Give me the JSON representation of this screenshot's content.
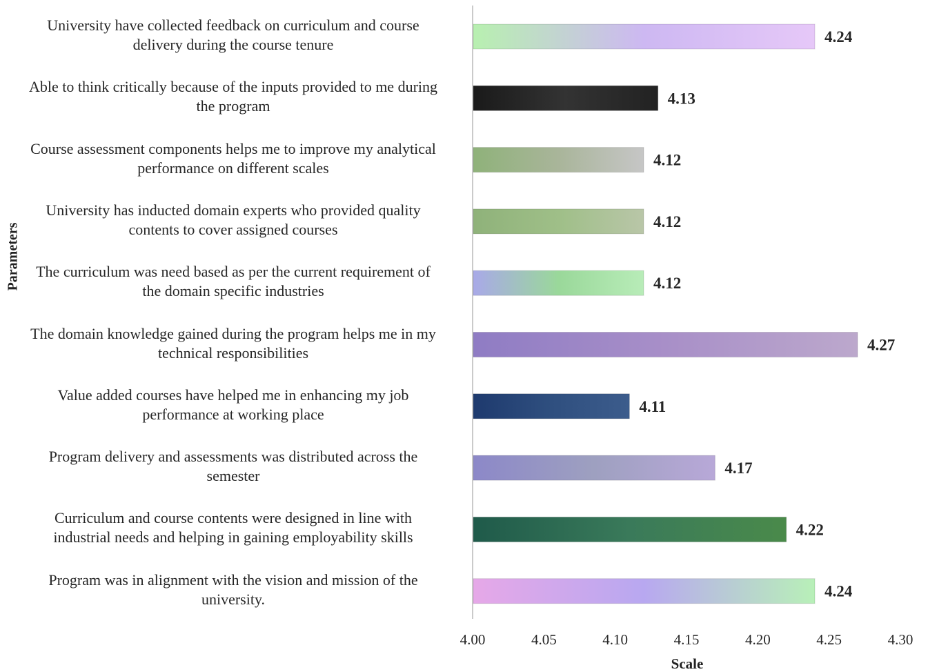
{
  "chart_data": {
    "type": "bar",
    "orientation": "horizontal",
    "categories": [
      "University have collected feedback on curriculum and course delivery during the course tenure",
      "Able to think critically because of the inputs provided to me during the program",
      "Course assessment components helps me to improve my analytical performance on different scales",
      "University has inducted domain experts who provided quality contents to cover assigned courses",
      "The curriculum was need based as per the current requirement of the domain specific industries",
      "The domain knowledge gained during the program helps me in my technical responsibilities",
      "Value added courses have helped me in enhancing my job performance at working place",
      "Program delivery and assessments was distributed across the semester",
      "Curriculum and course contents were designed in line with industrial needs and helping in gaining employability skills",
      "Program was in alignment with the vision and mission of the university."
    ],
    "category_lines": [
      [
        "University have collected feedback on curriculum and course",
        "delivery during the course tenure"
      ],
      [
        "Able to think critically because of the inputs provided to me during",
        "the program"
      ],
      [
        "Course assessment components helps me to improve my analytical",
        "performance on different scales"
      ],
      [
        "University has inducted domain experts who provided quality",
        "contents to cover assigned courses"
      ],
      [
        "The curriculum was need based as per the current requirement of",
        "the domain specific industries"
      ],
      [
        "The domain knowledge gained during the program helps me in my",
        "technical responsibilities"
      ],
      [
        "Value added courses have helped me in enhancing my job",
        "performance at working place"
      ],
      [
        "Program delivery and assessments was distributed across the",
        "semester"
      ],
      [
        "Curriculum and course contents were designed in line with",
        "industrial needs and helping in gaining employability skills"
      ],
      [
        "Program was in alignment with the vision and mission of the",
        "university."
      ]
    ],
    "values": [
      4.24,
      4.13,
      4.12,
      4.12,
      4.12,
      4.27,
      4.11,
      4.17,
      4.22,
      4.24
    ],
    "value_labels": [
      "4.24",
      "4.13",
      "4.12",
      "4.12",
      "4.12",
      "4.27",
      "4.11",
      "4.17",
      "4.22",
      "4.24"
    ],
    "bar_colors": [
      [
        "#b8f0b0",
        "#cdb8f2",
        "#e6c8f8"
      ],
      [
        "#1a1a1a",
        "#333333",
        "#222222"
      ],
      [
        "#8fb27a",
        "#a9b59a",
        "#c6c6c6"
      ],
      [
        "#8fb27a",
        "#9fbf88",
        "#b9c6a8"
      ],
      [
        "#a9a9e8",
        "#9ad89a",
        "#b8ecb8"
      ],
      [
        "#8f7cc4",
        "#a88fc8",
        "#bca8cc"
      ],
      [
        "#1e3a6e",
        "#2f4f7f",
        "#3c5c8c"
      ],
      [
        "#8c88c8",
        "#9ea0c0",
        "#b8a8d8"
      ],
      [
        "#1f5a4a",
        "#3a7a5a",
        "#4a8a4a"
      ],
      [
        "#e6a8e8",
        "#b8a8f0",
        "#b8f0b8"
      ]
    ],
    "xlabel": "Scale",
    "ylabel": "Parameters",
    "xlim": [
      4.0,
      4.3
    ],
    "xticks": [
      "4.00",
      "4.05",
      "4.10",
      "4.15",
      "4.20",
      "4.25",
      "4.30"
    ],
    "grid": false
  }
}
